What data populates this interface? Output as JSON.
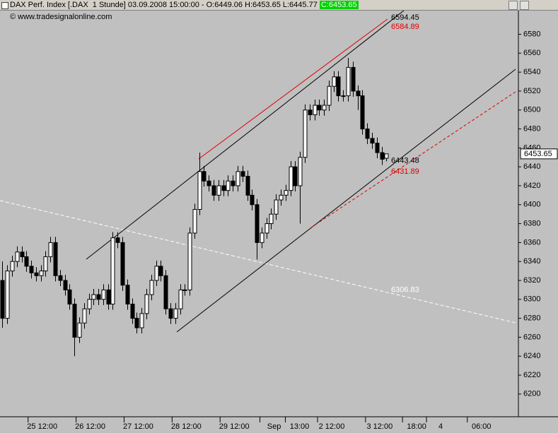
{
  "header": {
    "title": "DAX Perf. Index [.DAX  1 Stunde] 03.09.2008 15:00:00 - O:6449.06 H:6453.65 L:6445.77",
    "close_label": "C:6453.65",
    "watermark": "© www.tradesignalonline.com",
    "currency": "€"
  },
  "chart_data": {
    "type": "candlestick",
    "open": [
      6320,
      6280,
      6330,
      6340,
      6350,
      6345,
      6335,
      6328,
      6325,
      6330,
      6345,
      6360,
      6325,
      6320,
      6310,
      6295,
      6260,
      6275,
      6290,
      6300,
      6305,
      6300,
      6310,
      6295,
      6365,
      6360,
      6315,
      6295,
      6280,
      6270,
      6285,
      6305,
      6320,
      6335,
      6325,
      6290,
      6280,
      6290,
      6310,
      6310,
      6370,
      6395,
      6435,
      6425,
      6420,
      6410,
      6420,
      6415,
      6425,
      6420,
      6435,
      6430,
      6410,
      6400,
      6360,
      6370,
      6380,
      6390,
      6405,
      6410,
      6415,
      6440,
      6420,
      6450,
      6500,
      6495,
      6505,
      6500,
      6505,
      6525,
      6535,
      6515,
      6515,
      6545,
      6520,
      6515,
      6480,
      6470,
      6465,
      6455,
      6449.06
    ],
    "high": [
      6340,
      6336,
      6346,
      6356,
      6356,
      6351,
      6341,
      6334,
      6336,
      6351,
      6366,
      6366,
      6331,
      6326,
      6316,
      6301,
      6281,
      6296,
      6306,
      6311,
      6311,
      6316,
      6316,
      6371,
      6371,
      6366,
      6321,
      6301,
      6286,
      6291,
      6311,
      6326,
      6341,
      6341,
      6331,
      6296,
      6296,
      6316,
      6316,
      6376,
      6401,
      6455,
      6441,
      6431,
      6426,
      6426,
      6426,
      6431,
      6431,
      6441,
      6441,
      6436,
      6416,
      6406,
      6376,
      6386,
      6396,
      6411,
      6416,
      6421,
      6446,
      6446,
      6456,
      6506,
      6506,
      6511,
      6511,
      6511,
      6531,
      6541,
      6541,
      6521,
      6555,
      6551,
      6526,
      6521,
      6486,
      6476,
      6471,
      6461,
      6453.65
    ],
    "low": [
      6270,
      6274,
      6324,
      6334,
      6339,
      6329,
      6322,
      6319,
      6319,
      6324,
      6339,
      6319,
      6314,
      6304,
      6289,
      6240,
      6254,
      6269,
      6284,
      6294,
      6294,
      6294,
      6289,
      6289,
      6354,
      6309,
      6289,
      6274,
      6264,
      6264,
      6279,
      6299,
      6314,
      6319,
      6284,
      6274,
      6274,
      6284,
      6304,
      6304,
      6364,
      6389,
      6419,
      6414,
      6404,
      6404,
      6409,
      6409,
      6414,
      6414,
      6424,
      6404,
      6394,
      6342,
      6354,
      6364,
      6374,
      6384,
      6399,
      6404,
      6409,
      6414,
      6380,
      6444,
      6489,
      6489,
      6494,
      6494,
      6499,
      6519,
      6509,
      6509,
      6509,
      6514,
      6500,
      6474,
      6464,
      6459,
      6449,
      6442,
      6445.77
    ],
    "close": [
      6280,
      6330,
      6340,
      6350,
      6345,
      6335,
      6328,
      6325,
      6330,
      6345,
      6360,
      6325,
      6320,
      6310,
      6295,
      6260,
      6275,
      6290,
      6300,
      6305,
      6300,
      6310,
      6295,
      6365,
      6360,
      6315,
      6295,
      6280,
      6270,
      6285,
      6305,
      6320,
      6335,
      6325,
      6290,
      6280,
      6290,
      6310,
      6310,
      6370,
      6395,
      6435,
      6425,
      6420,
      6410,
      6420,
      6415,
      6425,
      6420,
      6435,
      6430,
      6410,
      6400,
      6360,
      6370,
      6380,
      6390,
      6405,
      6410,
      6415,
      6440,
      6420,
      6450,
      6500,
      6495,
      6505,
      6500,
      6505,
      6525,
      6535,
      6515,
      6515,
      6545,
      6520,
      6515,
      6480,
      6470,
      6465,
      6455,
      6448,
      6453.65
    ],
    "xlim": [
      -0.5,
      107.5
    ],
    "xticks": [
      {
        "value": 8.3,
        "label": "25 12:00"
      },
      {
        "value": 18.3,
        "label": "26 12:00"
      },
      {
        "value": 28.3,
        "label": "27 12:00"
      },
      {
        "value": 38.3,
        "label": "28 12:00"
      },
      {
        "value": 48.3,
        "label": "29 12:00"
      },
      {
        "value": 56.6,
        "label": "Sep"
      },
      {
        "value": 61.9,
        "label": "13:00"
      },
      {
        "value": 68.6,
        "label": "2 12:00"
      },
      {
        "value": 78.6,
        "label": "3 12:00"
      },
      {
        "value": 86.3,
        "label": "18:00"
      },
      {
        "value": 91.3,
        "label": "4"
      },
      {
        "value": 99.8,
        "label": "06:00"
      }
    ],
    "ylim": [
      6176,
      6605
    ],
    "yticks": [
      6200,
      6220,
      6240,
      6260,
      6280,
      6300,
      6320,
      6340,
      6360,
      6380,
      6400,
      6420,
      6440,
      6460,
      6480,
      6500,
      6520,
      6540,
      6560,
      6580
    ],
    "last_price": 6453.65,
    "annotations": [
      {
        "value": 6594.45,
        "color": "#000000"
      },
      {
        "value": 6584.89,
        "color": "#e00000"
      },
      {
        "value": 6443.48,
        "color": "#000000"
      },
      {
        "value": 6431.89,
        "color": "#e00000"
      },
      {
        "value": 6306.83,
        "color": "#ffffff"
      }
    ],
    "up_color": "#ffffff",
    "down_color": "#000000"
  }
}
